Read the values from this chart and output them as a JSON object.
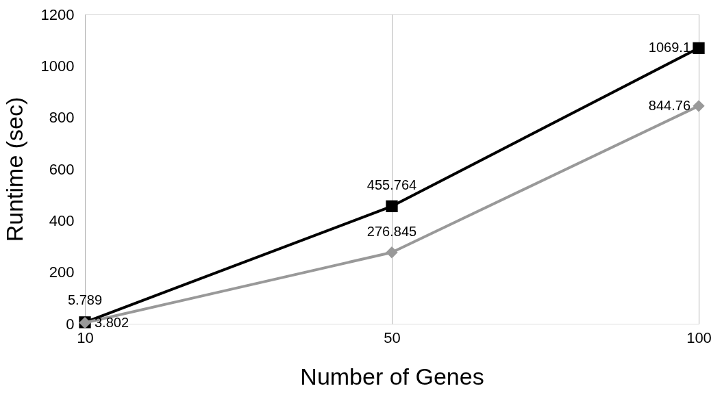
{
  "chart_data": {
    "type": "line",
    "xlabel": "Number of Genes",
    "ylabel": "Runtime (sec)",
    "categories": [
      "10",
      "50",
      "100"
    ],
    "series": [
      {
        "color": "#000000",
        "marker": "square",
        "values": [
          5.789,
          455.764,
          1069.1
        ]
      },
      {
        "color": "#999999",
        "marker": "diamond",
        "values": [
          3.802,
          276.845,
          844.76
        ]
      }
    ],
    "ylim": [
      0,
      1200
    ],
    "yticks": [
      0,
      200,
      400,
      600,
      800,
      1000,
      1200
    ],
    "grid": "x",
    "data_labels": true,
    "line_style": "solid"
  }
}
